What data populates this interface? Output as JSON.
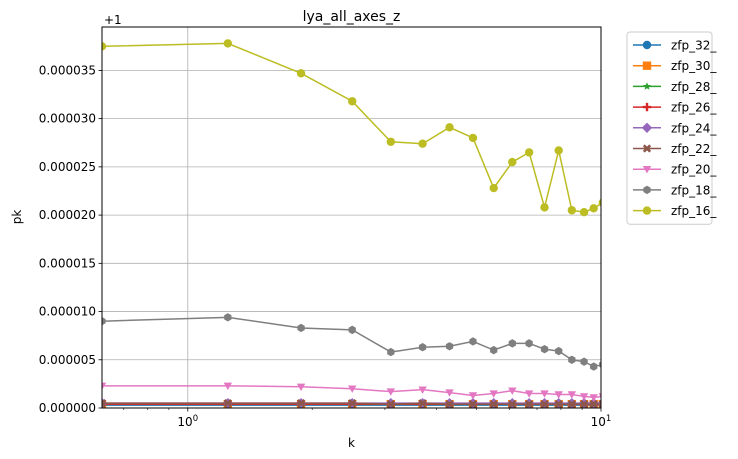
{
  "chart_data": {
    "type": "line",
    "title": "lya_all_axes_z",
    "xlabel": "k",
    "ylabel": "pk",
    "x_scale": "log",
    "xlim": [
      0.62,
      10
    ],
    "ylim": [
      0.0,
      3.95e-05
    ],
    "y_offset_label": "+1",
    "grid": true,
    "legend_position": "outside-right",
    "x_major_ticks": [
      {
        "value": 1,
        "base": "10",
        "exp": "0"
      },
      {
        "value": 10,
        "base": "10",
        "exp": "1"
      }
    ],
    "x_minor_ticks": [
      0.7,
      0.8,
      0.9,
      2,
      3,
      4,
      5,
      6,
      7,
      8,
      9
    ],
    "y_ticks": [
      {
        "value": 0.0,
        "label": "0.000000"
      },
      {
        "value": 5e-06,
        "label": "0.000005"
      },
      {
        "value": 1e-05,
        "label": "0.000010"
      },
      {
        "value": 1.5e-05,
        "label": "0.000015"
      },
      {
        "value": 2e-05,
        "label": "0.000020"
      },
      {
        "value": 2.5e-05,
        "label": "0.000025"
      },
      {
        "value": 3e-05,
        "label": "0.000030"
      },
      {
        "value": 3.5e-05,
        "label": "0.000035"
      }
    ],
    "x": [
      0.62,
      1.25,
      1.88,
      2.5,
      3.1,
      3.7,
      4.3,
      4.9,
      5.5,
      6.1,
      6.7,
      7.3,
      7.9,
      8.5,
      9.1,
      9.6,
      10.1
    ],
    "series": [
      {
        "name": "zfp_32_",
        "color": "#1f77b4",
        "marker": "circle",
        "values": [
          3e-07,
          3e-07,
          3e-07,
          3e-07,
          3e-07,
          3e-07,
          3e-07,
          3e-07,
          3e-07,
          3e-07,
          3e-07,
          3e-07,
          3e-07,
          3e-07,
          3e-07,
          3e-07,
          3e-07
        ]
      },
      {
        "name": "zfp_30_",
        "color": "#ff7f0e",
        "marker": "square",
        "values": [
          4e-07,
          4e-07,
          4e-07,
          4e-07,
          4e-07,
          4e-07,
          4e-07,
          4e-07,
          4e-07,
          4e-07,
          4e-07,
          4e-07,
          4e-07,
          4e-07,
          4e-07,
          4e-07,
          4e-07
        ]
      },
      {
        "name": "zfp_28_",
        "color": "#2ca02c",
        "marker": "star",
        "values": [
          4e-07,
          4e-07,
          4e-07,
          4e-07,
          4e-07,
          4e-07,
          4e-07,
          4e-07,
          4e-07,
          4e-07,
          4e-07,
          4e-07,
          4e-07,
          4e-07,
          4e-07,
          4e-07,
          4e-07
        ]
      },
      {
        "name": "zfp_26_",
        "color": "#d62728",
        "marker": "plus",
        "values": [
          4e-07,
          4e-07,
          4e-07,
          4e-07,
          4e-07,
          4e-07,
          4e-07,
          4e-07,
          4e-07,
          4e-07,
          4e-07,
          4e-07,
          4e-07,
          4e-07,
          4e-07,
          4e-07,
          4e-07
        ]
      },
      {
        "name": "zfp_24_",
        "color": "#9467bd",
        "marker": "diamond",
        "values": [
          5e-07,
          5e-07,
          5e-07,
          5e-07,
          5e-07,
          5e-07,
          5e-07,
          5e-07,
          5e-07,
          5e-07,
          5e-07,
          5e-07,
          5e-07,
          5e-07,
          5e-07,
          5e-07,
          5e-07
        ]
      },
      {
        "name": "zfp_22_",
        "color": "#8c564b",
        "marker": "x",
        "values": [
          5e-07,
          5e-07,
          5e-07,
          5e-07,
          4e-07,
          5e-07,
          4e-07,
          4e-07,
          4e-07,
          4e-07,
          4e-07,
          4e-07,
          4e-07,
          4e-07,
          4e-07,
          4e-07,
          4e-07
        ]
      },
      {
        "name": "zfp_20_",
        "color": "#e377c2",
        "marker": "triangle-down",
        "values": [
          2.3e-06,
          2.3e-06,
          2.2e-06,
          2e-06,
          1.7e-06,
          1.9e-06,
          1.6e-06,
          1.3e-06,
          1.5e-06,
          1.8e-06,
          1.5e-06,
          1.5e-06,
          1.4e-06,
          1.4e-06,
          1.2e-06,
          1.1e-06,
          1.2e-06
        ]
      },
      {
        "name": "zfp_18_",
        "color": "#7f7f7f",
        "marker": "hexagon",
        "values": [
          9e-06,
          9.4e-06,
          8.3e-06,
          8.1e-06,
          5.8e-06,
          6.3e-06,
          6.4e-06,
          6.9e-06,
          6e-06,
          6.7e-06,
          6.7e-06,
          6.1e-06,
          5.9e-06,
          5e-06,
          4.8e-06,
          4.3e-06,
          4.5e-06
        ]
      },
      {
        "name": "zfp_16_",
        "color": "#bcbd22",
        "marker": "circle",
        "values": [
          3.75e-05,
          3.78e-05,
          3.47e-05,
          3.18e-05,
          2.76e-05,
          2.74e-05,
          2.91e-05,
          2.8e-05,
          2.28e-05,
          2.55e-05,
          2.65e-05,
          2.08e-05,
          2.67e-05,
          2.05e-05,
          2.03e-05,
          2.07e-05,
          2.13e-05
        ]
      }
    ]
  }
}
